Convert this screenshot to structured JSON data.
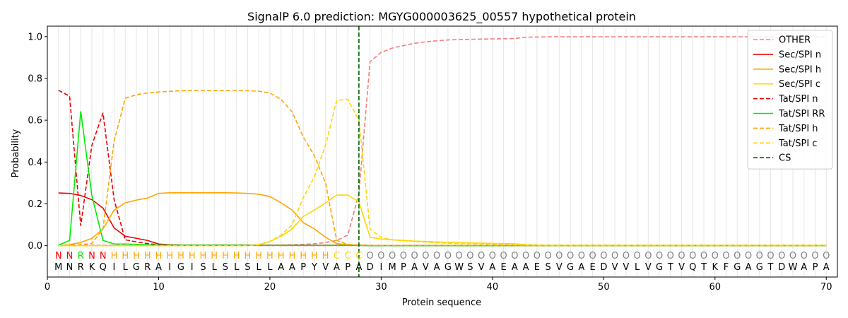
{
  "chart_data": {
    "type": "line",
    "title": "SignalP 6.0 prediction: MGYG000003625_00557 hypothetical protein",
    "xlabel": "Protein sequence",
    "ylabel": "Probability",
    "xlim": [
      0,
      71
    ],
    "ylim": [
      -0.15,
      1.05
    ],
    "xticks": [
      0,
      10,
      20,
      30,
      40,
      50,
      60,
      70
    ],
    "yticks": [
      0.0,
      0.2,
      0.4,
      0.6,
      0.8,
      1.0
    ],
    "xtick_labels": [
      "0",
      "10",
      "20",
      "30",
      "40",
      "50",
      "60",
      "70"
    ],
    "ytick_labels": [
      "0.0",
      "0.2",
      "0.4",
      "0.6",
      "0.8",
      "1.0"
    ],
    "grid": "vertical lines at each residue",
    "legend_position": "top-right",
    "sequence": "MNRKQILGRAIGISLSLSLLAAPYVAPADIMPAVAGWSVAEAAESVGAEDVVLVGTVQTKFGAGTDWAPA",
    "labels": "NNRNNHHHHHHHHHHHHHHHHHHHHCCCOOOOOOOOOOOOOOOOOOOOOOOOOOOOOOOOOOOOOOOOOOO",
    "label_colors": {
      "N": "#ff0000",
      "R": "#00ee00",
      "H": "#ffa500",
      "C": "#ffd700",
      "O": "#808080"
    },
    "cleavage_site": 28,
    "series": [
      {
        "name": "OTHER",
        "color": "#f08080",
        "dash": "dashed",
        "values": [
          0.001,
          0.001,
          0.002,
          0.002,
          0.002,
          0.002,
          0.002,
          0.002,
          0.002,
          0.002,
          0.002,
          0.002,
          0.002,
          0.002,
          0.002,
          0.002,
          0.002,
          0.002,
          0.002,
          0.002,
          0.003,
          0.004,
          0.006,
          0.009,
          0.015,
          0.025,
          0.05,
          0.25,
          0.88,
          0.925,
          0.945,
          0.957,
          0.968,
          0.975,
          0.98,
          0.984,
          0.986,
          0.987,
          0.988,
          0.989,
          0.99,
          0.991,
          0.997,
          0.998,
          0.999,
          0.999,
          0.999,
          0.999,
          0.999,
          0.999,
          0.999,
          0.999,
          0.999,
          0.999,
          0.999,
          0.999,
          0.999,
          0.999,
          0.999,
          0.999,
          0.999,
          0.999,
          0.999,
          0.999,
          0.999,
          0.999,
          0.999,
          0.999,
          0.999,
          0.999
        ]
      },
      {
        "name": "Sec/SPI n",
        "color": "#ee0000",
        "dash": "solid",
        "values": [
          0.252,
          0.25,
          0.24,
          0.22,
          0.18,
          0.085,
          0.045,
          0.035,
          0.025,
          0.008,
          0.004,
          0.003,
          0.003,
          0.003,
          0.003,
          0.003,
          0.003,
          0.003,
          0.002,
          0.002,
          0.002,
          0.002,
          0.002,
          0.002,
          0.002,
          0.002,
          0.002,
          0.002,
          0.001,
          0.001,
          0.001,
          0.001,
          0.001,
          0.001,
          0.001,
          0.001,
          0.001,
          0.001,
          0.001,
          0.001,
          0.001,
          0.001,
          0.001,
          0.001,
          0.001,
          0.001,
          0.001,
          0.001,
          0.001,
          0.001,
          0.001,
          0.001,
          0.001,
          0.001,
          0.001,
          0.001,
          0.001,
          0.001,
          0.001,
          0.001,
          0.001,
          0.001,
          0.001,
          0.001,
          0.001,
          0.001,
          0.001,
          0.001,
          0.001,
          0.001
        ]
      },
      {
        "name": "Sec/SPI h",
        "color": "#ffa500",
        "dash": "solid",
        "values": [
          0.0,
          0.005,
          0.015,
          0.035,
          0.08,
          0.17,
          0.205,
          0.218,
          0.228,
          0.25,
          0.253,
          0.253,
          0.253,
          0.253,
          0.253,
          0.253,
          0.252,
          0.25,
          0.246,
          0.235,
          0.205,
          0.17,
          0.11,
          0.08,
          0.04,
          0.01,
          0.004,
          0.002,
          0.001,
          0.001,
          0.001,
          0.001,
          0.001,
          0.001,
          0.001,
          0.001,
          0.001,
          0.001,
          0.001,
          0.001,
          0.001,
          0.001,
          0.001,
          0.001,
          0.001,
          0.001,
          0.001,
          0.001,
          0.001,
          0.001,
          0.001,
          0.001,
          0.001,
          0.001,
          0.001,
          0.001,
          0.001,
          0.001,
          0.001,
          0.001,
          0.001,
          0.001,
          0.001,
          0.001,
          0.001,
          0.001,
          0.001,
          0.001,
          0.001,
          0.001
        ]
      },
      {
        "name": "Sec/SPI c",
        "color": "#ffd700",
        "dash": "solid",
        "values": [
          0.0,
          0.0,
          0.0,
          0.0,
          0.0,
          0.0,
          0.0,
          0.0,
          0.0,
          0.0,
          0.0,
          0.0,
          0.0,
          0.0,
          0.0,
          0.0,
          0.0,
          0.0,
          0.005,
          0.02,
          0.045,
          0.08,
          0.14,
          0.17,
          0.205,
          0.242,
          0.242,
          0.21,
          0.04,
          0.032,
          0.028,
          0.025,
          0.022,
          0.02,
          0.018,
          0.016,
          0.014,
          0.013,
          0.012,
          0.011,
          0.01,
          0.009,
          0.004,
          0.003,
          0.002,
          0.002,
          0.002,
          0.002,
          0.002,
          0.002,
          0.002,
          0.002,
          0.002,
          0.002,
          0.002,
          0.002,
          0.002,
          0.002,
          0.002,
          0.002,
          0.002,
          0.002,
          0.002,
          0.002,
          0.002,
          0.002,
          0.002,
          0.002,
          0.002,
          0.002
        ]
      },
      {
        "name": "Tat/SPI n",
        "color": "#ee0000",
        "dash": "dashed",
        "values": [
          0.743,
          0.715,
          0.095,
          0.48,
          0.635,
          0.22,
          0.028,
          0.018,
          0.01,
          0.005,
          0.003,
          0.002,
          0.002,
          0.002,
          0.002,
          0.002,
          0.002,
          0.002,
          0.001,
          0.001,
          0.001,
          0.001,
          0.001,
          0.001,
          0.001,
          0.001,
          0.001,
          0.001,
          0.0,
          0.0,
          0.0,
          0.0,
          0.0,
          0.0,
          0.0,
          0.0,
          0.0,
          0.0,
          0.0,
          0.0,
          0.0,
          0.0,
          0.0,
          0.0,
          0.0,
          0.0,
          0.0,
          0.0,
          0.0,
          0.0,
          0.0,
          0.0,
          0.0,
          0.0,
          0.0,
          0.0,
          0.0,
          0.0,
          0.0,
          0.0,
          0.0,
          0.0,
          0.0,
          0.0,
          0.0,
          0.0,
          0.0,
          0.0,
          0.0,
          0.0
        ]
      },
      {
        "name": "Tat/SPI RR",
        "color": "#00ee00",
        "dash": "solid",
        "values": [
          0.002,
          0.025,
          0.643,
          0.24,
          0.025,
          0.008,
          0.008,
          0.006,
          0.004,
          0.003,
          0.002,
          0.002,
          0.002,
          0.002,
          0.002,
          0.002,
          0.002,
          0.002,
          0.001,
          0.001,
          0.001,
          0.001,
          0.001,
          0.001,
          0.001,
          0.001,
          0.001,
          0.001,
          0.0,
          0.0,
          0.0,
          0.0,
          0.0,
          0.0,
          0.0,
          0.0,
          0.0,
          0.0,
          0.0,
          0.0,
          0.0,
          0.0,
          0.0,
          0.0,
          0.0,
          0.0,
          0.0,
          0.0,
          0.0,
          0.0,
          0.0,
          0.0,
          0.0,
          0.0,
          0.0,
          0.0,
          0.0,
          0.0,
          0.0,
          0.0,
          0.0,
          0.0,
          0.0,
          0.0,
          0.0,
          0.0,
          0.0,
          0.0,
          0.0,
          0.0
        ]
      },
      {
        "name": "Tat/SPI h",
        "color": "#ffa500",
        "dash": "dashed",
        "values": [
          0.0,
          0.003,
          0.005,
          0.01,
          0.08,
          0.5,
          0.705,
          0.722,
          0.73,
          0.735,
          0.738,
          0.741,
          0.742,
          0.742,
          0.742,
          0.742,
          0.742,
          0.741,
          0.739,
          0.73,
          0.7,
          0.64,
          0.52,
          0.43,
          0.3,
          0.025,
          0.006,
          0.003,
          0.001,
          0.001,
          0.001,
          0.001,
          0.001,
          0.001,
          0.001,
          0.001,
          0.001,
          0.001,
          0.001,
          0.001,
          0.001,
          0.001,
          0.0,
          0.0,
          0.0,
          0.0,
          0.0,
          0.0,
          0.0,
          0.0,
          0.0,
          0.0,
          0.0,
          0.0,
          0.0,
          0.0,
          0.0,
          0.0,
          0.0,
          0.0,
          0.0,
          0.0,
          0.0,
          0.0,
          0.0,
          0.0,
          0.0,
          0.0,
          0.0,
          0.0
        ]
      },
      {
        "name": "Tat/SPI c",
        "color": "#ffd700",
        "dash": "dashed",
        "values": [
          0.0,
          0.0,
          0.0,
          0.0,
          0.0,
          0.0,
          0.0,
          0.0,
          0.0,
          0.0,
          0.0,
          0.0,
          0.0,
          0.0,
          0.0,
          0.0,
          0.0,
          0.0,
          0.004,
          0.02,
          0.05,
          0.1,
          0.23,
          0.33,
          0.48,
          0.695,
          0.7,
          0.6,
          0.08,
          0.04,
          0.028,
          0.024,
          0.02,
          0.017,
          0.014,
          0.012,
          0.01,
          0.009,
          0.008,
          0.007,
          0.006,
          0.005,
          0.003,
          0.002,
          0.002,
          0.002,
          0.002,
          0.002,
          0.002,
          0.002,
          0.002,
          0.002,
          0.002,
          0.002,
          0.002,
          0.002,
          0.002,
          0.002,
          0.002,
          0.002,
          0.002,
          0.002,
          0.002,
          0.002,
          0.002,
          0.002,
          0.002,
          0.002,
          0.002,
          0.002
        ]
      }
    ],
    "cs_legend": {
      "name": "CS",
      "color": "#006400",
      "dash": "dashed"
    }
  }
}
